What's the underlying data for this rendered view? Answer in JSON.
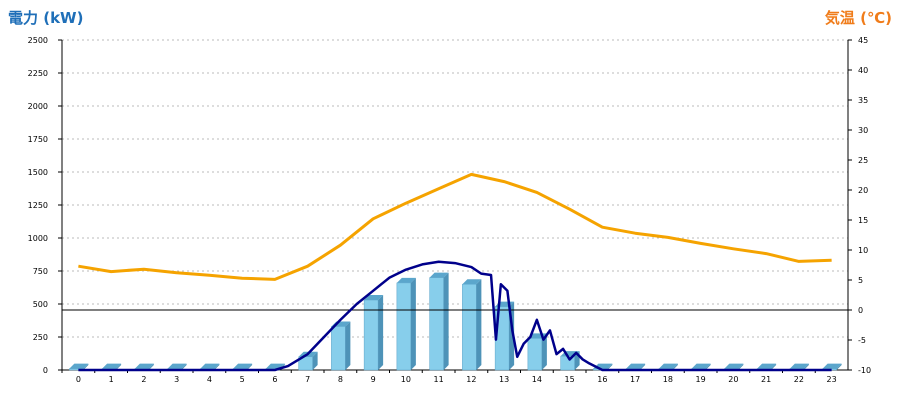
{
  "chart_data": {
    "type": "bar+line",
    "left_axis_title": "電力 (kW)",
    "right_axis_title": "気温 (℃)",
    "y_left": {
      "min": 0,
      "max": 2500,
      "ticks": [
        "0",
        "250",
        "500",
        "750",
        "1000",
        "1250",
        "1500",
        "1750",
        "2000",
        "2250",
        "2500"
      ]
    },
    "y_right": {
      "min": -10,
      "max": 45,
      "ticks": [
        "-10",
        "-5",
        "0",
        "5",
        "10",
        "15",
        "20",
        "25",
        "30",
        "35",
        "40",
        "45"
      ]
    },
    "categories": [
      "0",
      "1",
      "2",
      "3",
      "4",
      "5",
      "6",
      "7",
      "8",
      "9",
      "10",
      "11",
      "12",
      "13",
      "14",
      "15",
      "16",
      "17",
      "18",
      "19",
      "20",
      "21",
      "22",
      "23"
    ],
    "bars": {
      "axis": "left",
      "values": [
        10,
        10,
        10,
        10,
        10,
        10,
        10,
        100,
        330,
        530,
        660,
        700,
        650,
        480,
        240,
        105,
        10,
        10,
        10,
        10,
        10,
        10,
        10,
        10
      ],
      "color": "#87ceeb"
    },
    "temperature": {
      "axis": "right",
      "color": "#f5a300",
      "x": [
        0,
        1,
        2,
        3,
        4,
        5,
        6,
        7,
        8,
        9,
        10,
        11,
        12,
        13,
        14,
        15,
        16,
        17,
        18,
        19,
        20,
        21,
        22,
        23
      ],
      "y": [
        7.3,
        6.4,
        6.8,
        6.2,
        5.8,
        5.3,
        5.1,
        7.3,
        10.8,
        15.2,
        17.8,
        20.2,
        22.6,
        21.4,
        19.6,
        16.8,
        13.8,
        12.8,
        12.1,
        11.1,
        10.2,
        9.4,
        8.1,
        8.3
      ]
    },
    "power_line": {
      "axis": "left",
      "color": "#00008b",
      "x": [
        0,
        1,
        2,
        3,
        4,
        5,
        6,
        6.4,
        7,
        7.5,
        8,
        8.5,
        9,
        9.5,
        10,
        10.5,
        11,
        11.5,
        12,
        12.3,
        12.6,
        12.75,
        12.9,
        13.1,
        13.25,
        13.4,
        13.6,
        13.8,
        14.0,
        14.2,
        14.4,
        14.6,
        14.8,
        15.0,
        15.2,
        15.4,
        15.6,
        16,
        17,
        18,
        19,
        20,
        21,
        22,
        23
      ],
      "y": [
        0,
        0,
        0,
        0,
        0,
        0,
        0,
        30,
        120,
        250,
        380,
        500,
        600,
        700,
        760,
        800,
        820,
        810,
        780,
        730,
        720,
        230,
        650,
        600,
        300,
        100,
        200,
        250,
        380,
        230,
        300,
        120,
        160,
        80,
        130,
        80,
        50,
        0,
        0,
        0,
        0,
        0,
        0,
        0,
        0
      ]
    },
    "zero_line_temperature": 0,
    "grid": true
  }
}
